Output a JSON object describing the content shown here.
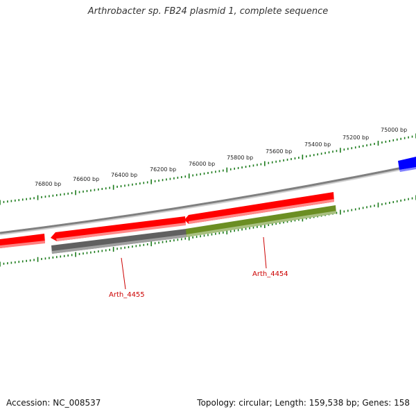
{
  "title": "Arthrobacter sp. FB24 plasmid 1, complete sequence",
  "footer": {
    "accession": "Accession: NC_008537",
    "summary": "Topology: circular; Length: 159,538 bp; Genes: 158"
  },
  "ruler_labels": [
    "76800 bp",
    "76600 bp",
    "76400 bp",
    "76200 bp",
    "76000 bp",
    "75800 bp",
    "75600 bp",
    "75400 bp",
    "75200 bp",
    "75000 bp"
  ],
  "genes": [
    {
      "name": "Arth_4455",
      "strand": "reverse",
      "color": "#ff0000",
      "cog_color": "#606060"
    },
    {
      "name": "Arth_4454",
      "strand": "forward",
      "color": "#ff0000",
      "cog_color": "#6b8e23"
    }
  ],
  "colors": {
    "backbone": "#808080",
    "gene_red": "#ff0000",
    "gene_blue": "#0000ff",
    "cog_gray": "#606060",
    "cog_olive": "#6b8e23",
    "ruler": "#1a7a1a",
    "label": "#cc0000"
  }
}
